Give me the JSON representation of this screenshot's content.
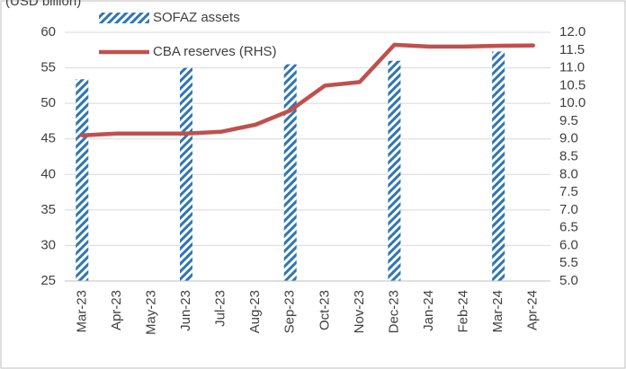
{
  "chart_data": {
    "type": "bar-line",
    "subtitle": "(USD billion)",
    "categories": [
      "Mar-23",
      "Apr-23",
      "May-23",
      "Jun-23",
      "Jul-23",
      "Aug-23",
      "Sep-23",
      "Oct-23",
      "Nov-23",
      "Dec-23",
      "Jan-24",
      "Feb-24",
      "Mar-24",
      "Apr-24"
    ],
    "series": [
      {
        "name": "SOFAZ assets",
        "color": "#2e75b6",
        "kind": "bar",
        "axis": "y",
        "values": [
          53.4,
          null,
          null,
          55,
          null,
          null,
          55.5,
          null,
          null,
          56,
          null,
          null,
          57.3,
          null
        ]
      },
      {
        "name": "CBA reserves (RHS)",
        "color": "#c0504d",
        "kind": "line",
        "axis": "y2",
        "values": [
          9.1,
          9.15,
          9.15,
          9.15,
          9.2,
          9.4,
          9.8,
          10.5,
          10.6,
          11.65,
          11.6,
          11.6,
          11.62,
          11.63
        ]
      }
    ],
    "ylim": [
      25,
      60
    ],
    "yticks": [
      25,
      30,
      35,
      40,
      45,
      50,
      55,
      60
    ],
    "y2lim": [
      5,
      12
    ],
    "y2ticks": [
      {
        "value": 5,
        "label": "5.0"
      },
      {
        "value": 5.5,
        "label": "5.5"
      },
      {
        "value": 6,
        "label": "6.0"
      },
      {
        "value": 6.5,
        "label": "6.5"
      },
      {
        "value": 7,
        "label": "7.0"
      },
      {
        "value": 7.5,
        "label": "7.5"
      },
      {
        "value": 8,
        "label": "8.0"
      },
      {
        "value": 8.5,
        "label": "8.5"
      },
      {
        "value": 9,
        "label": "9.0"
      },
      {
        "value": 9.5,
        "label": "9.5"
      },
      {
        "value": 10,
        "label": "10.0"
      },
      {
        "value": 10.5,
        "label": "10.5"
      },
      {
        "value": 11,
        "label": "11.0"
      },
      {
        "value": 11.5,
        "label": "11.5"
      },
      {
        "value": 12,
        "label": "12.0"
      }
    ],
    "grid": true,
    "legend": "top-left"
  }
}
